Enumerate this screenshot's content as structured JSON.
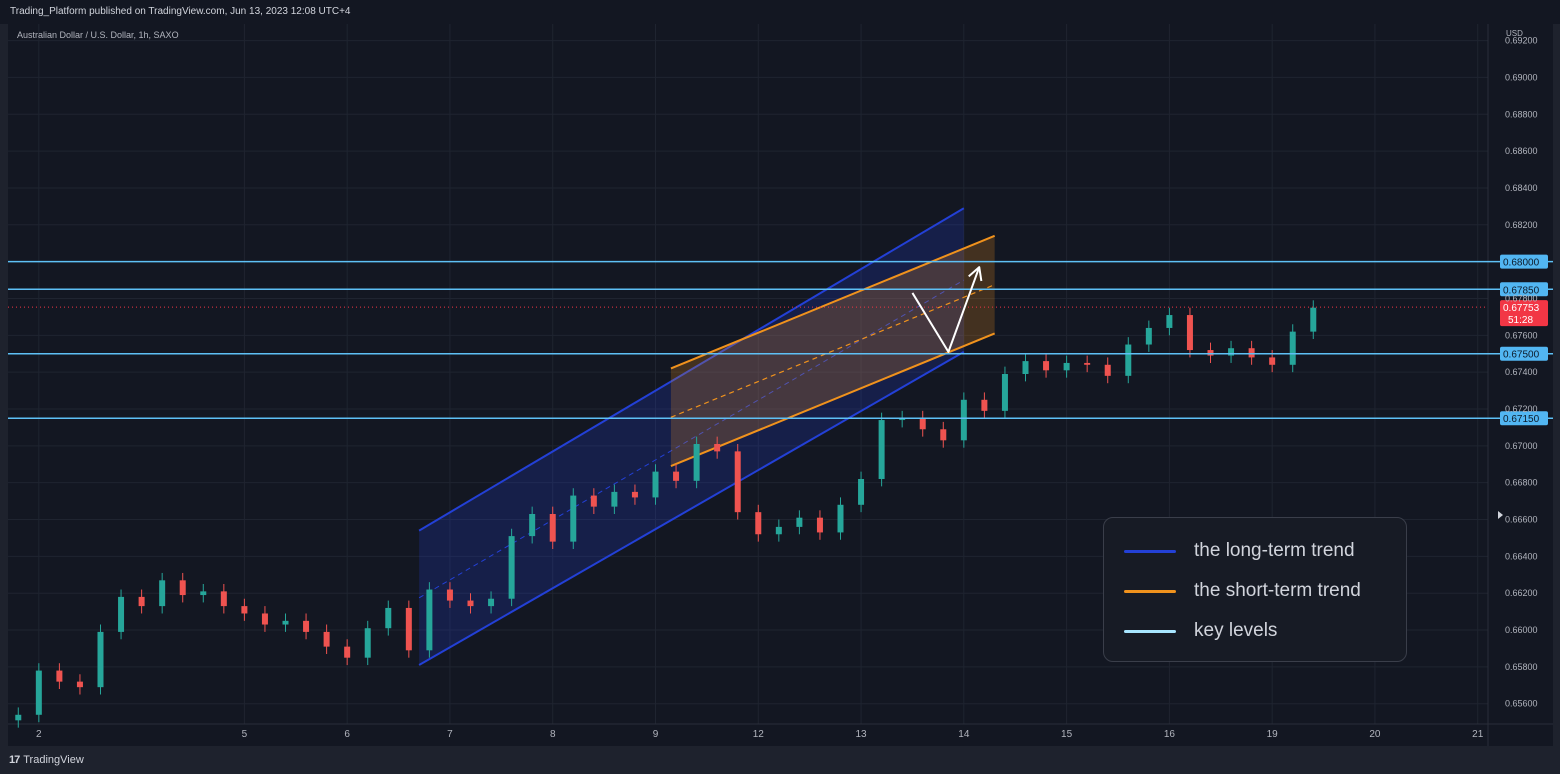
{
  "header": {
    "published": "Trading_Platform published on TradingView.com, Jun 13, 2023 12:08 UTC+4"
  },
  "symbol": "Australian Dollar / U.S. Dollar, 1h, SAXO",
  "currency": "USD",
  "footer": {
    "brand_mark": "17",
    "brand_name": "TradingView"
  },
  "colors": {
    "background": "#131722",
    "candle_up": "#26a69a",
    "candle_down": "#ef5350",
    "long_trend": "#2340d6",
    "short_trend": "#f0921d",
    "key_level": "#5ec0f5",
    "price_tag": "#f23645"
  },
  "legend": [
    {
      "label": "the long-term trend",
      "color": "#2340d6"
    },
    {
      "label": "the short-term trend",
      "color": "#f0921d"
    },
    {
      "label": "key levels",
      "color": "#a8e6ff"
    }
  ],
  "chart_data": {
    "type": "candlestick",
    "title": "Australian Dollar / U.S. Dollar, 1h, SAXO",
    "ylim": [
      0.6549,
      0.6929
    ],
    "x_ticks": [
      "2",
      "5",
      "6",
      "7",
      "8",
      "9",
      "12",
      "13",
      "14",
      "15",
      "16",
      "19",
      "20",
      "21"
    ],
    "x_tick_pos": [
      1.0,
      3.0,
      4.0,
      5.0,
      6.0,
      7.0,
      8.0,
      9.0,
      10.0,
      11.0,
      12.0,
      13.0,
      14.0,
      15.0
    ],
    "xlim": [
      0.7,
      15.1
    ],
    "y_ticks": [
      0.656,
      0.658,
      0.66,
      0.662,
      0.664,
      0.666,
      0.668,
      0.67,
      0.672,
      0.674,
      0.676,
      0.678,
      0.682,
      0.684,
      0.686,
      0.688,
      0.69,
      0.692
    ],
    "key_levels": [
      {
        "value": 0.68,
        "label": "0.68000"
      },
      {
        "value": 0.6785,
        "label": "0.67850"
      },
      {
        "value": 0.675,
        "label": "0.67500"
      },
      {
        "value": 0.6715,
        "label": "0.67150"
      }
    ],
    "current_price": {
      "value": 0.67753,
      "label": "0.67753",
      "countdown": "51:28"
    },
    "long_channel": {
      "lower": [
        [
          4.7,
          0.6581
        ],
        [
          10.0,
          0.6751
        ]
      ],
      "upper": [
        [
          4.7,
          0.6654
        ],
        [
          10.0,
          0.6829
        ]
      ]
    },
    "short_channel": {
      "lower": [
        [
          7.15,
          0.6689
        ],
        [
          10.3,
          0.6761
        ]
      ],
      "upper": [
        [
          7.15,
          0.6742
        ],
        [
          10.3,
          0.6814
        ]
      ]
    },
    "projection_path": [
      [
        9.5,
        0.6783
      ],
      [
        9.85,
        0.6751
      ],
      [
        10.15,
        0.6797
      ]
    ],
    "close_series": [
      [
        0.8,
        0.6554
      ],
      [
        1.0,
        0.6578
      ],
      [
        1.2,
        0.6572
      ],
      [
        1.4,
        0.6569
      ],
      [
        1.6,
        0.6599
      ],
      [
        1.8,
        0.6618
      ],
      [
        2.0,
        0.6613
      ],
      [
        2.2,
        0.6627
      ],
      [
        2.4,
        0.6619
      ],
      [
        2.6,
        0.6621
      ],
      [
        2.8,
        0.6613
      ],
      [
        3.0,
        0.6609
      ],
      [
        3.2,
        0.6603
      ],
      [
        3.4,
        0.6605
      ],
      [
        3.6,
        0.6599
      ],
      [
        3.8,
        0.6591
      ],
      [
        4.0,
        0.6585
      ],
      [
        4.2,
        0.6601
      ],
      [
        4.4,
        0.6612
      ],
      [
        4.6,
        0.6589
      ],
      [
        4.8,
        0.6622
      ],
      [
        5.0,
        0.6616
      ],
      [
        5.2,
        0.6613
      ],
      [
        5.4,
        0.6617
      ],
      [
        5.6,
        0.6651
      ],
      [
        5.8,
        0.6663
      ],
      [
        6.0,
        0.6648
      ],
      [
        6.2,
        0.6673
      ],
      [
        6.4,
        0.6667
      ],
      [
        6.6,
        0.6675
      ],
      [
        6.8,
        0.6672
      ],
      [
        7.0,
        0.6686
      ],
      [
        7.2,
        0.6681
      ],
      [
        7.4,
        0.6701
      ],
      [
        7.6,
        0.6697
      ],
      [
        7.8,
        0.6664
      ],
      [
        8.0,
        0.6652
      ],
      [
        8.2,
        0.6656
      ],
      [
        8.4,
        0.6661
      ],
      [
        8.6,
        0.6653
      ],
      [
        8.8,
        0.6668
      ],
      [
        9.0,
        0.6682
      ],
      [
        9.2,
        0.6714
      ],
      [
        9.4,
        0.6715
      ],
      [
        9.6,
        0.6709
      ],
      [
        9.8,
        0.6703
      ],
      [
        10.0,
        0.6725
      ],
      [
        10.2,
        0.6719
      ],
      [
        10.4,
        0.6739
      ],
      [
        10.6,
        0.6746
      ],
      [
        10.8,
        0.6741
      ],
      [
        11.0,
        0.6745
      ],
      [
        11.2,
        0.6744
      ],
      [
        11.4,
        0.6738
      ],
      [
        11.6,
        0.6755
      ],
      [
        11.8,
        0.6764
      ],
      [
        12.0,
        0.6771
      ],
      [
        12.2,
        0.6752
      ],
      [
        12.4,
        0.6749
      ],
      [
        12.6,
        0.6753
      ],
      [
        12.8,
        0.6748
      ],
      [
        13.0,
        0.6744
      ],
      [
        13.2,
        0.6762
      ],
      [
        13.4,
        0.6775
      ]
    ]
  }
}
